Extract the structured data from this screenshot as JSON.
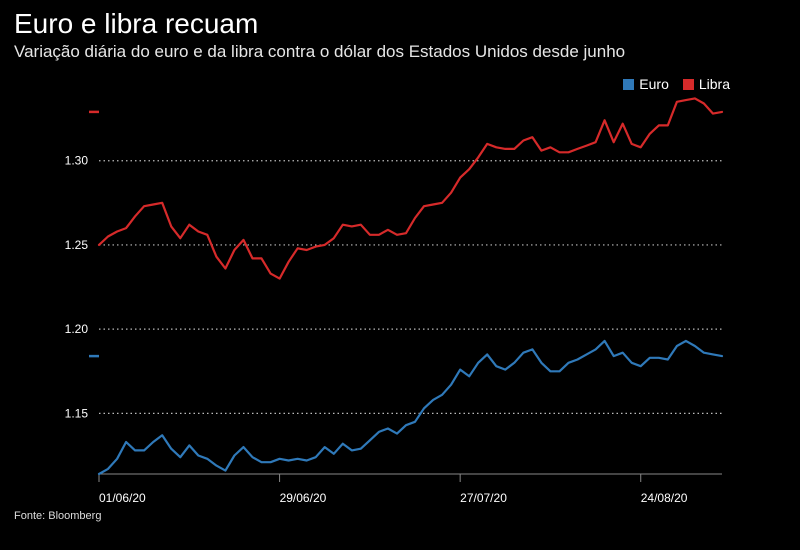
{
  "title": "Euro e libra recuam",
  "subtitle": "Variação diária do euro e da libra contra o dólar dos Estados Unidos desde junho",
  "source": "Fonte: Bloomberg",
  "chart_data": {
    "type": "line",
    "title": "Euro e libra recuam",
    "subtitle": "Variação diária do euro e da libra contra o dólar dos Estados Unidos desde junho",
    "ylim": [
      1.114,
      1.342
    ],
    "yticks": [
      1.15,
      1.2,
      1.25,
      1.3
    ],
    "ytick_labels": [
      "1.15",
      "1.20",
      "1.25",
      "1.30"
    ],
    "xticks": [
      {
        "index": 0,
        "label": "01/06/20"
      },
      {
        "index": 20,
        "label": "29/06/20"
      },
      {
        "index": 40,
        "label": "27/07/20"
      },
      {
        "index": 60,
        "label": "24/08/20"
      }
    ],
    "grid": "horizontal-dotted",
    "legend_position": "top-right",
    "colors": {
      "euro": "#2f79b9",
      "libra": "#d62a2a",
      "grid": "#bbbbbb",
      "axis": "#888888"
    },
    "series": [
      {
        "name": "Euro",
        "color": "#2f79b9",
        "last_value": 1.184,
        "values": [
          1.114,
          1.117,
          1.123,
          1.133,
          1.128,
          1.128,
          1.133,
          1.137,
          1.129,
          1.124,
          1.131,
          1.125,
          1.123,
          1.119,
          1.116,
          1.125,
          1.13,
          1.124,
          1.121,
          1.121,
          1.123,
          1.122,
          1.123,
          1.122,
          1.124,
          1.13,
          1.126,
          1.132,
          1.128,
          1.129,
          1.134,
          1.139,
          1.141,
          1.138,
          1.143,
          1.145,
          1.153,
          1.158,
          1.161,
          1.167,
          1.176,
          1.172,
          1.18,
          1.185,
          1.178,
          1.176,
          1.18,
          1.186,
          1.188,
          1.18,
          1.175,
          1.175,
          1.18,
          1.182,
          1.185,
          1.188,
          1.193,
          1.184,
          1.186,
          1.18,
          1.178,
          1.183,
          1.183,
          1.182,
          1.19,
          1.193,
          1.19,
          1.186,
          1.185,
          1.184
        ]
      },
      {
        "name": "Libra",
        "color": "#d62a2a",
        "last_value": 1.329,
        "values": [
          1.25,
          1.255,
          1.258,
          1.26,
          1.267,
          1.273,
          1.274,
          1.275,
          1.261,
          1.254,
          1.262,
          1.258,
          1.256,
          1.243,
          1.236,
          1.247,
          1.253,
          1.242,
          1.242,
          1.233,
          1.23,
          1.24,
          1.248,
          1.247,
          1.249,
          1.25,
          1.254,
          1.262,
          1.261,
          1.262,
          1.256,
          1.256,
          1.259,
          1.256,
          1.257,
          1.266,
          1.273,
          1.274,
          1.275,
          1.281,
          1.29,
          1.295,
          1.302,
          1.31,
          1.308,
          1.307,
          1.307,
          1.312,
          1.314,
          1.306,
          1.308,
          1.305,
          1.305,
          1.307,
          1.309,
          1.311,
          1.324,
          1.311,
          1.322,
          1.31,
          1.308,
          1.316,
          1.321,
          1.321,
          1.335,
          1.336,
          1.337,
          1.334,
          1.328,
          1.329
        ]
      }
    ]
  }
}
